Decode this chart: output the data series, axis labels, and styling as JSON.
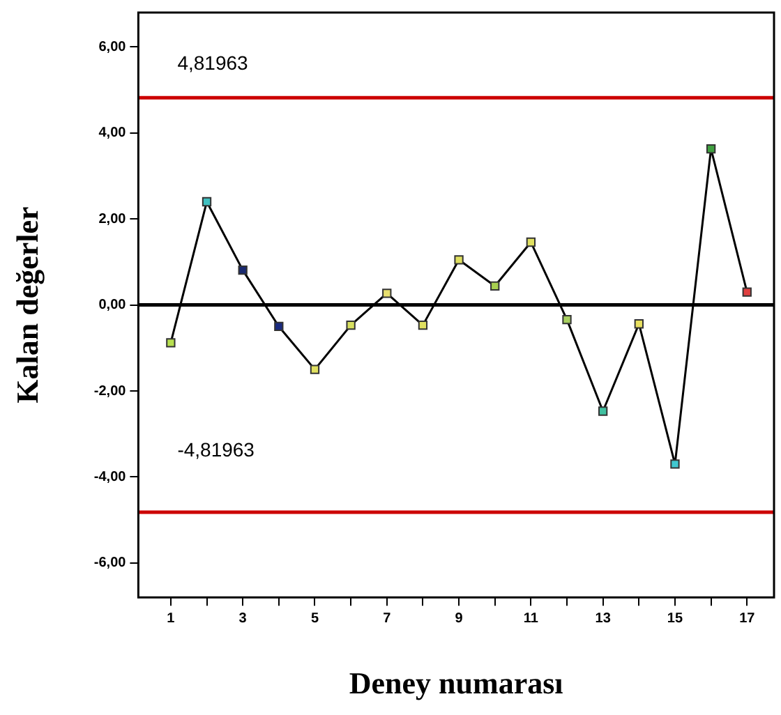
{
  "chart_data": {
    "type": "line",
    "xlabel": "Deney numarası",
    "ylabel": "Kalan değerler",
    "x": [
      1,
      2,
      3,
      4,
      5,
      6,
      7,
      8,
      9,
      10,
      11,
      12,
      13,
      14,
      15,
      16,
      17
    ],
    "series": [
      {
        "color": "#000000",
        "marker": "square",
        "colors": [
          "#b8e050",
          "#40c0c0",
          "#1a2a70",
          "#1a2a80",
          "#e0e060",
          "#d8e060",
          "#e8e070",
          "#e0e060",
          "#e0e060",
          "#a8d050",
          "#e0e060",
          "#a8d060",
          "#40c0a0",
          "#e8e060",
          "#40c8d0",
          "#40a040",
          "#e04040"
        ],
        "values": [
          -0.88,
          2.4,
          0.81,
          -0.5,
          -1.5,
          -0.47,
          0.27,
          -0.47,
          1.05,
          0.44,
          1.46,
          -0.34,
          -2.47,
          -0.44,
          -3.7,
          3.63,
          0.3
        ]
      }
    ],
    "xlim": [
      0.1,
      17.75
    ],
    "ylim": [
      -6.8,
      6.8
    ],
    "xticks": [
      1,
      {
        "value": 2,
        "label": null
      },
      3,
      {
        "value": 4,
        "label": null
      },
      5,
      {
        "value": 6,
        "label": null
      },
      7,
      {
        "value": 8,
        "label": null
      },
      9,
      {
        "value": 10,
        "label": null
      },
      11,
      {
        "value": 12,
        "label": null
      },
      13,
      {
        "value": 14,
        "label": null
      },
      15,
      {
        "value": 16,
        "label": null
      },
      17
    ],
    "yticks": [
      {
        "value": -6,
        "label": "-6,00"
      },
      {
        "value": -4,
        "label": "-4,00"
      },
      {
        "value": -2,
        "label": "-2,00"
      },
      {
        "value": 0,
        "label": "0,00"
      },
      {
        "value": 2,
        "label": "2,00"
      },
      {
        "value": 4,
        "label": "4,00"
      },
      {
        "value": 6,
        "label": "6,00"
      }
    ],
    "ref_lines": [
      {
        "axis": "y",
        "value": 4.81963,
        "label": "4,81963",
        "color": "#cc0000"
      },
      {
        "axis": "y",
        "value": -4.81963,
        "label": "-4,81963",
        "color": "#cc0000"
      },
      {
        "axis": "y",
        "value": 0,
        "color": "#000000"
      }
    ],
    "grid": false,
    "legend": false,
    "line_style": "solid"
  }
}
